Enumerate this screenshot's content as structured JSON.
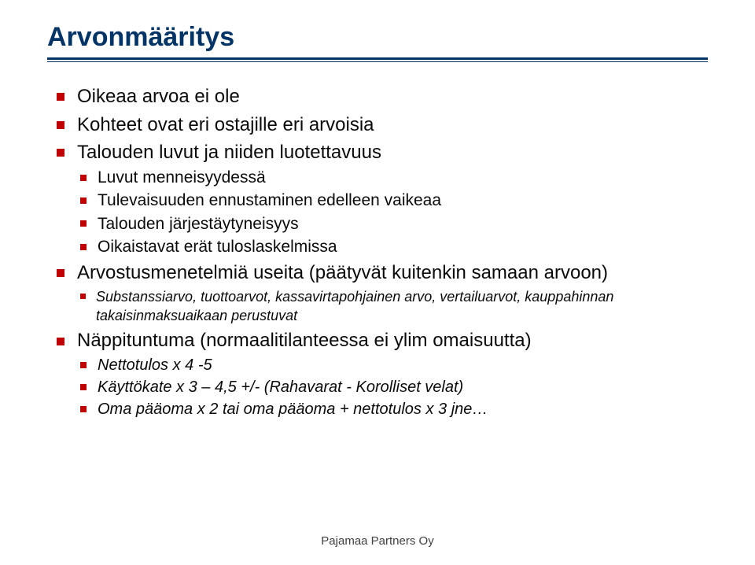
{
  "title": "Arvonmääritys",
  "bullets": [
    {
      "text": "Oikeaa arvoa ei ole"
    },
    {
      "text": "Kohteet ovat eri ostajille eri arvoisia"
    },
    {
      "text": "Talouden luvut ja niiden luotettavuus",
      "children": [
        {
          "text": "Luvut menneisyydessä"
        },
        {
          "text": "Tulevaisuuden ennustaminen edelleen vaikeaa"
        },
        {
          "text": "Talouden järjestäytyneisyys"
        },
        {
          "text": "Oikaistavat erät tuloslaskelmissa"
        }
      ]
    },
    {
      "text": "Arvostusmenetelmiä useita (päätyvät kuitenkin samaan arvoon)",
      "children": [
        {
          "text": "Substanssiarvo, tuottoarvot, kassavirtapohjainen arvo, vertailuarvot, kauppahinnan takaisinmaksuaikaan perustuvat",
          "italic": true
        }
      ]
    },
    {
      "text": "Näppituntuma (normaalitilanteessa ei ylim omaisuutta)",
      "children": [
        {
          "text": "Nettotulos x 4 -5",
          "italic": true
        },
        {
          "text": "Käyttökate x 3 – 4,5 +/- (Rahavarat - Korolliset velat)",
          "italic": true
        },
        {
          "text": "Oma pääoma x 2 tai oma pääoma + nettotulos x 3 jne…",
          "italic": true
        }
      ]
    }
  ],
  "footer": "Pajamaa Partners Oy",
  "colors": {
    "title": "#003366",
    "rule": "#003366",
    "bullet": "#c00000",
    "text": "#0a0a0a",
    "footer": "#404040",
    "background": "#ffffff"
  }
}
